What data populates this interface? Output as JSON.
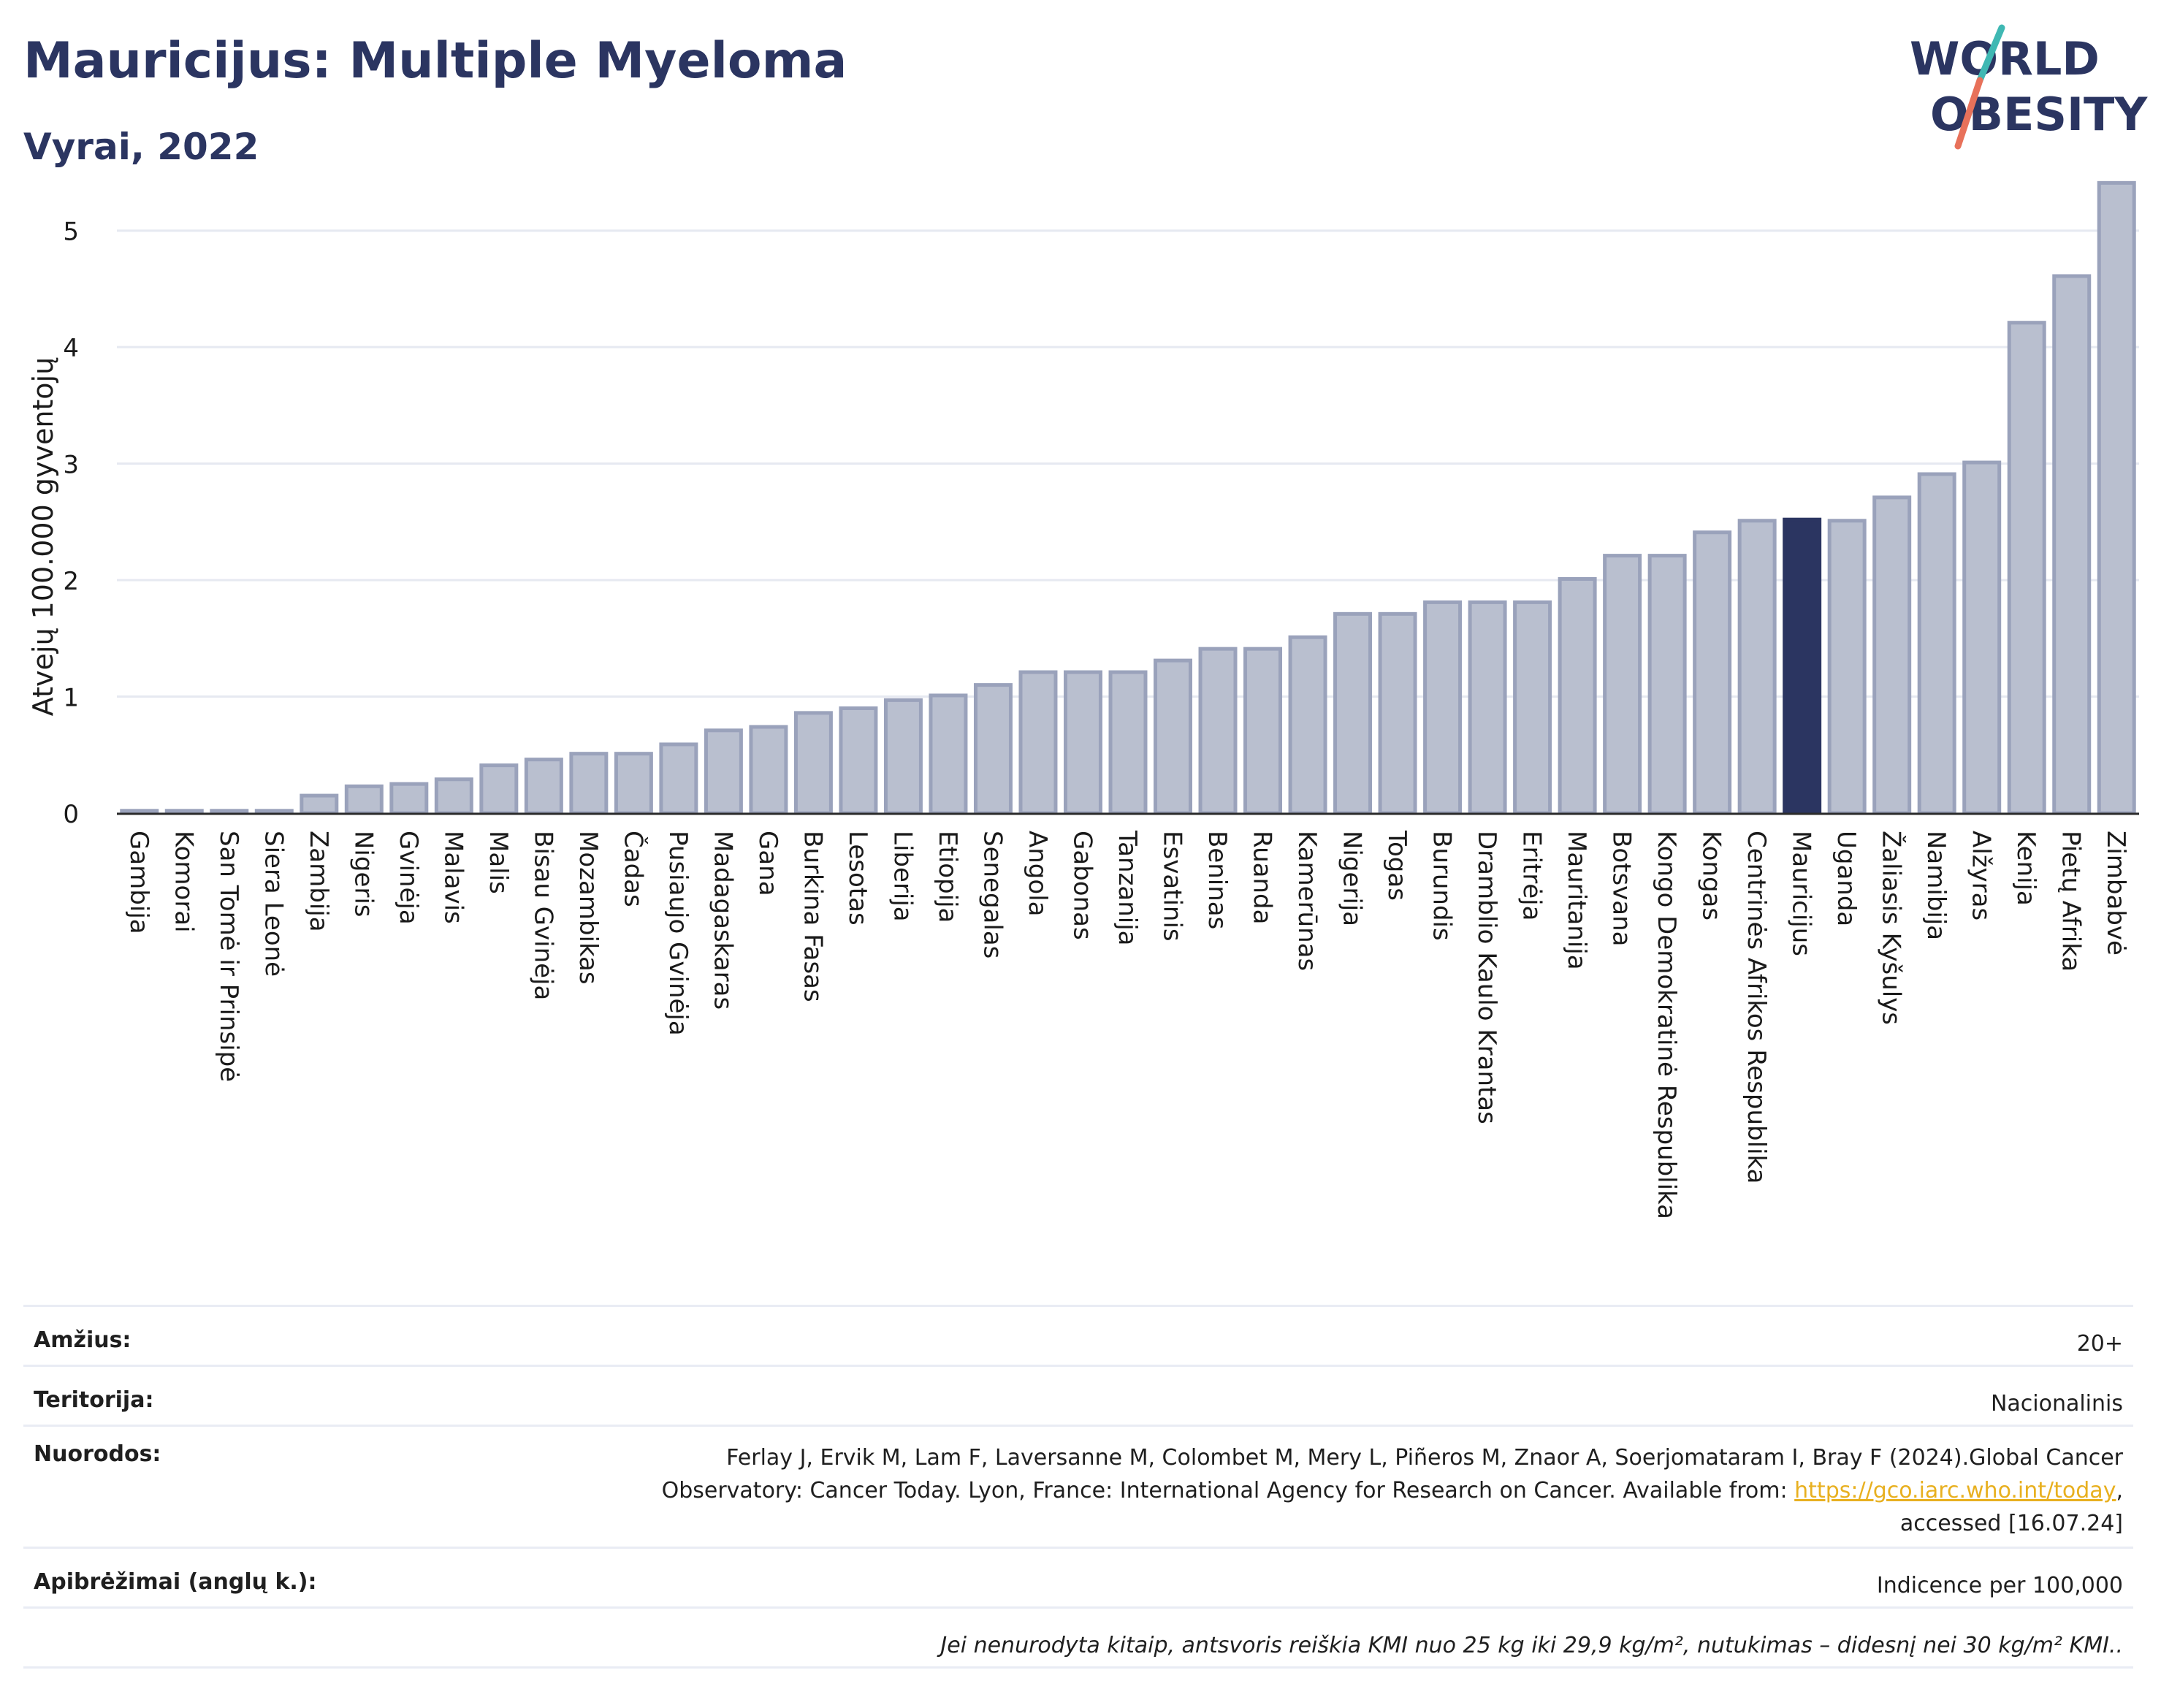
{
  "header": {
    "title": "Mauricijus: Multiple Myeloma",
    "subtitle": "Vyrai, 2022",
    "logo_text_line1": "WORLD",
    "logo_text_line2": "OBESITY"
  },
  "colors": {
    "bar": "#b9bfcf",
    "bar_stroke": "#9aa2bb",
    "highlight": "#2b3561",
    "title": "#2b3561",
    "grid": "#e6e9f1",
    "logo_slash_top": "#3fb8b3",
    "logo_slash_bottom": "#e8715a"
  },
  "chart_data": {
    "type": "bar",
    "ylabel": "Atvejų 100.000 gyventojų",
    "ylim": [
      0,
      5.5
    ],
    "yticks": [
      0,
      1,
      2,
      3,
      4,
      5
    ],
    "grid": true,
    "highlight_category": "Mauricijus",
    "categories": [
      "Gambija",
      "Komorai",
      "San Tomė ir Prinsipė",
      "Siera Leonė",
      "Zambija",
      "Nigeris",
      "Gvinėja",
      "Malavis",
      "Malis",
      "Bisau Gvinėja",
      "Mozambikas",
      "Čadas",
      "Pusiaujo Gvinėja",
      "Madagaskaras",
      "Gana",
      "Burkina Fasas",
      "Lesotas",
      "Liberija",
      "Etiopija",
      "Senegalas",
      "Angola",
      "Gabonas",
      "Tanzanija",
      "Esvatinis",
      "Beninas",
      "Ruanda",
      "Kamerūnas",
      "Nigerija",
      "Togas",
      "Burundis",
      "Dramblio Kaulo Krantas",
      "Eritrėja",
      "Mauritanija",
      "Botsvana",
      "Kongo Demokratinė Respublika",
      "Kongas",
      "Centrinės Afrikos Respublika",
      "Mauricijus",
      "Uganda",
      "Žaliasis Kyšulys",
      "Namibija",
      "Alžyras",
      "Kenija",
      "Pietų Afrika",
      "Zimbabvė"
    ],
    "values": [
      0.02,
      0.02,
      0.02,
      0.02,
      0.15,
      0.23,
      0.25,
      0.29,
      0.41,
      0.46,
      0.51,
      0.51,
      0.59,
      0.71,
      0.74,
      0.86,
      0.9,
      0.97,
      1.01,
      1.1,
      1.21,
      1.21,
      1.21,
      1.31,
      1.41,
      1.41,
      1.51,
      1.71,
      1.71,
      1.81,
      1.81,
      1.81,
      2.01,
      2.21,
      2.21,
      2.41,
      2.51,
      2.52,
      2.51,
      2.71,
      2.91,
      3.01,
      4.21,
      4.61,
      5.41
    ]
  },
  "info": {
    "age_label": "Amžius:",
    "age_value": "20+",
    "territory_label": "Teritorija:",
    "territory_value": "Nacionalinis",
    "refs_label": "Nuorodos:",
    "refs_line1": "Ferlay J, Ervik M, Lam F, Laversanne M, Colombet M, Mery L, Piñeros M, Znaor A, Soerjomataram I, Bray F (2024).Global Cancer",
    "refs_line2_pre": "Observatory: Cancer Today. Lyon, France: International Agency for Research on Cancer. Available from: ",
    "refs_link": "https://gco.iarc.who.int/today",
    "refs_line2_post": ",",
    "refs_line3": "accessed [16.07.24]",
    "definitions_label": "Apibrėžimai (anglų k.):",
    "definitions_value": "Indicence per 100,000",
    "footnote": "Jei nenurodyta kitaip, antsvoris reiškia KMI nuo 25 kg iki 29,9 kg/m², nutukimas – didesnį nei 30 kg/m² KMI.."
  }
}
